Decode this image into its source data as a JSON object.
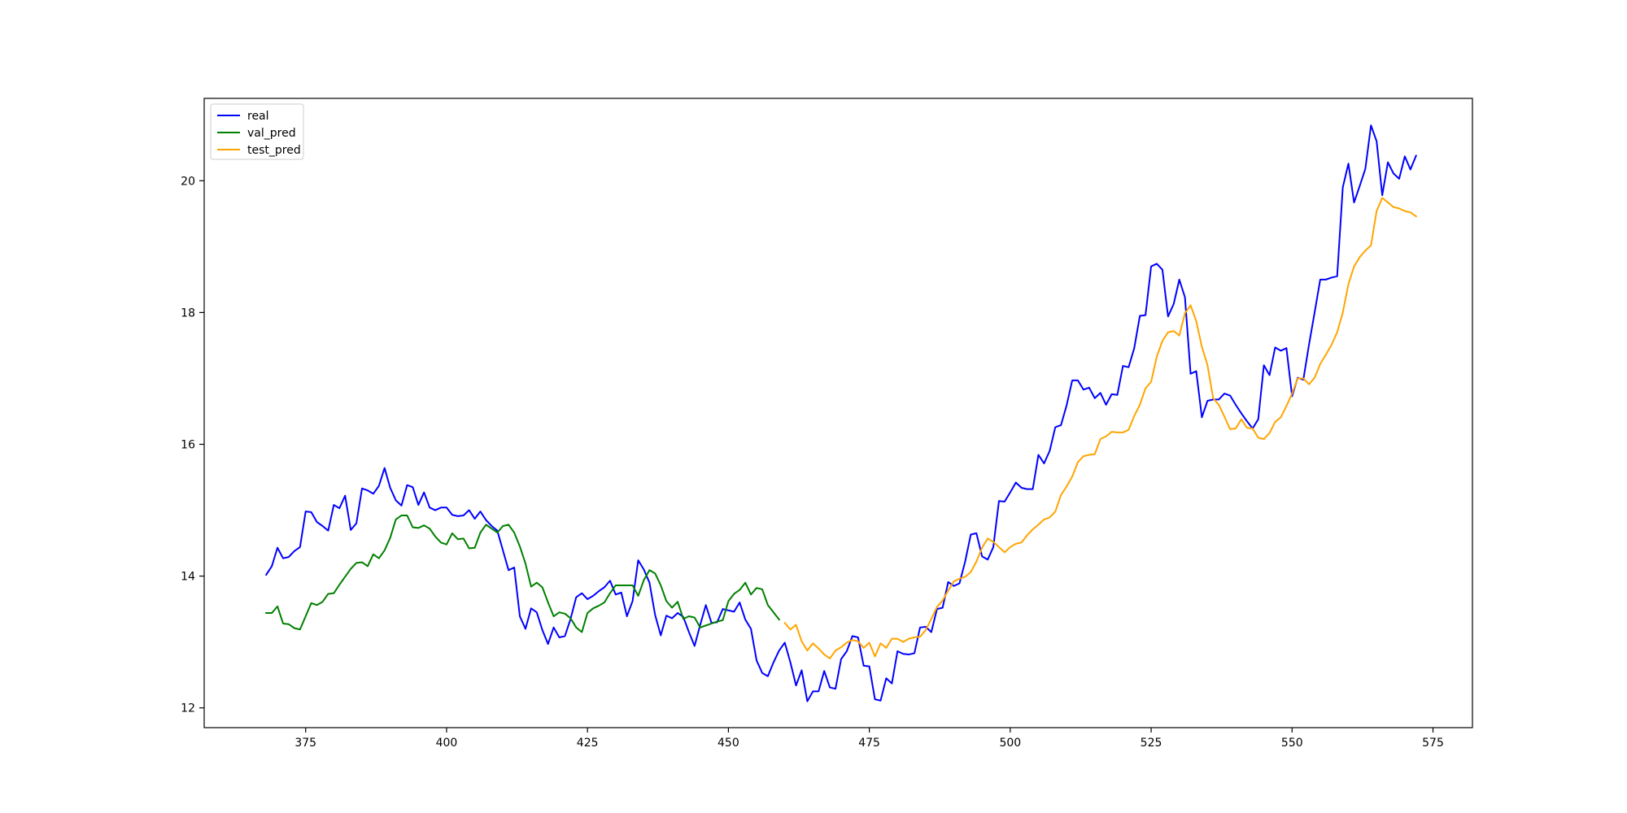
{
  "chart_data": {
    "type": "line",
    "title": "",
    "xlabel": "",
    "ylabel": "",
    "xlim": [
      357,
      582
    ],
    "ylim": [
      11.7,
      21.25
    ],
    "xticks": [
      375,
      400,
      425,
      450,
      475,
      500,
      525,
      550,
      575
    ],
    "yticks": [
      12,
      14,
      16,
      18,
      20
    ],
    "grid": false,
    "legend_position": "top-left",
    "series": [
      {
        "name": "real",
        "color": "#0000ff",
        "x_start": 368,
        "values": [
          14.02,
          14.15,
          14.43,
          14.27,
          14.29,
          14.38,
          14.44,
          14.98,
          14.97,
          14.82,
          14.76,
          14.69,
          15.08,
          15.03,
          15.22,
          14.7,
          14.8,
          15.33,
          15.3,
          15.25,
          15.37,
          15.64,
          15.34,
          15.15,
          15.07,
          15.38,
          15.35,
          15.08,
          15.27,
          15.04,
          15.0,
          15.04,
          15.04,
          14.93,
          14.91,
          14.92,
          15.0,
          14.87,
          14.98,
          14.85,
          14.76,
          14.69,
          14.39,
          14.09,
          14.13,
          13.39,
          13.2,
          13.51,
          13.45,
          13.18,
          12.97,
          13.22,
          13.07,
          13.09,
          13.35,
          13.68,
          13.74,
          13.65,
          13.7,
          13.77,
          13.83,
          13.93,
          13.72,
          13.75,
          13.39,
          13.62,
          14.24,
          14.1,
          13.9,
          13.41,
          13.1,
          13.4,
          13.36,
          13.44,
          13.38,
          13.15,
          12.94,
          13.26,
          13.56,
          13.29,
          13.3,
          13.5,
          13.48,
          13.46,
          13.6,
          13.34,
          13.2,
          12.72,
          12.53,
          12.48,
          12.69,
          12.87,
          12.99,
          12.69,
          12.34,
          12.57,
          12.1,
          12.25,
          12.25,
          12.56,
          12.31,
          12.29,
          12.74,
          12.86,
          13.09,
          13.07,
          12.64,
          12.63,
          12.13,
          12.11,
          12.45,
          12.37,
          12.86,
          12.82,
          12.81,
          12.83,
          13.22,
          13.23,
          13.15,
          13.5,
          13.52,
          13.91,
          13.85,
          13.89,
          14.22,
          14.63,
          14.65,
          14.3,
          14.25,
          14.44,
          15.14,
          15.13,
          15.27,
          15.42,
          15.34,
          15.32,
          15.32,
          15.84,
          15.71,
          15.9,
          16.26,
          16.29,
          16.59,
          16.97,
          16.97,
          16.83,
          16.86,
          16.7,
          16.78,
          16.6,
          16.76,
          16.75,
          17.19,
          17.17,
          17.46,
          17.95,
          17.96,
          18.7,
          18.74,
          18.65,
          17.94,
          18.13,
          18.5,
          18.23,
          17.07,
          17.11,
          16.41,
          16.66,
          16.68,
          16.68,
          16.77,
          16.74,
          16.6,
          16.47,
          16.35,
          16.24,
          16.38,
          17.2,
          17.05,
          17.47,
          17.42,
          17.46,
          16.73,
          17.01,
          16.98,
          17.51,
          18.0,
          18.5,
          18.5,
          18.53,
          18.55,
          19.9,
          20.26,
          19.67,
          19.92,
          20.18,
          20.84,
          20.6,
          19.78,
          20.28,
          20.11,
          20.03,
          20.37,
          20.17,
          20.38
        ]
      },
      {
        "name": "val_pred",
        "color": "#008000",
        "x_start": 368,
        "values": [
          13.44,
          13.44,
          13.54,
          13.28,
          13.27,
          13.21,
          13.19,
          13.39,
          13.59,
          13.56,
          13.61,
          13.73,
          13.74,
          13.87,
          13.99,
          14.11,
          14.2,
          14.21,
          14.15,
          14.33,
          14.27,
          14.39,
          14.58,
          14.86,
          14.92,
          14.92,
          14.74,
          14.73,
          14.77,
          14.72,
          14.6,
          14.51,
          14.48,
          14.65,
          14.56,
          14.57,
          14.42,
          14.43,
          14.66,
          14.78,
          14.72,
          14.66,
          14.76,
          14.78,
          14.66,
          14.45,
          14.19,
          13.84,
          13.9,
          13.83,
          13.6,
          13.39,
          13.45,
          13.43,
          13.36,
          13.22,
          13.15,
          13.44,
          13.51,
          13.55,
          13.6,
          13.74,
          13.86,
          13.86,
          13.86,
          13.86,
          13.7,
          13.94,
          14.09,
          14.04,
          13.86,
          13.62,
          13.52,
          13.61,
          13.35,
          13.39,
          13.37,
          13.22,
          13.25,
          13.28,
          13.31,
          13.33,
          13.62,
          13.73,
          13.79,
          13.9,
          13.72,
          13.82,
          13.8,
          13.56,
          13.45,
          13.34
        ]
      },
      {
        "name": "test_pred",
        "color": "#ffa500",
        "x_start": 460,
        "values": [
          13.29,
          13.19,
          13.26,
          13.01,
          12.87,
          12.98,
          12.9,
          12.81,
          12.75,
          12.87,
          12.92,
          12.99,
          13.03,
          13.01,
          12.91,
          12.99,
          12.78,
          12.98,
          12.91,
          13.05,
          13.05,
          13.0,
          13.05,
          13.07,
          13.08,
          13.18,
          13.35,
          13.53,
          13.63,
          13.78,
          13.92,
          13.96,
          13.99,
          14.06,
          14.22,
          14.43,
          14.57,
          14.52,
          14.44,
          14.36,
          14.44,
          14.49,
          14.51,
          14.62,
          14.71,
          14.78,
          14.86,
          14.89,
          14.98,
          15.23,
          15.36,
          15.51,
          15.73,
          15.82,
          15.84,
          15.85,
          16.08,
          16.12,
          16.19,
          16.18,
          16.18,
          16.22,
          16.43,
          16.6,
          16.85,
          16.95,
          17.33,
          17.57,
          17.7,
          17.72,
          17.65,
          17.99,
          18.11,
          17.87,
          17.48,
          17.2,
          16.7,
          16.6,
          16.42,
          16.23,
          16.24,
          16.38,
          16.25,
          16.24,
          16.1,
          16.08,
          16.17,
          16.34,
          16.41,
          16.58,
          16.77,
          17.0,
          17.0,
          16.91,
          17.01,
          17.22,
          17.36,
          17.51,
          17.7,
          18.0,
          18.43,
          18.7,
          18.84,
          18.94,
          19.02,
          19.54,
          19.74,
          19.67,
          19.6,
          19.58,
          19.54,
          19.52,
          19.46
        ]
      }
    ]
  }
}
